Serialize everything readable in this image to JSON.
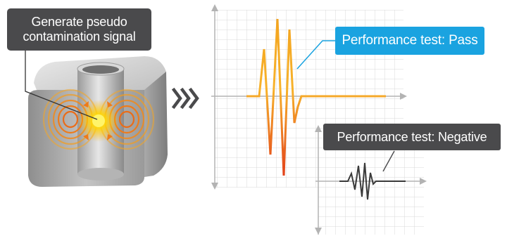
{
  "labels": {
    "generate_line1": "Generate pseudo",
    "generate_line2": "contamination signal",
    "pass": "Performance test: Pass",
    "negative": "Performance test: Negative"
  },
  "colors": {
    "pass_accent": "#1aa3e0",
    "label_dark": "#4a4a4c",
    "arrow": "#4a4a4c",
    "signal_warm_top": "#f7b22b",
    "signal_warm_bottom": "#e94e1b",
    "grid": "#d6d6d6",
    "axis": "#b3b3b3",
    "negative_signal": "#3a3a3a"
  },
  "icons": [
    "triple-chevron-right-icon"
  ]
}
